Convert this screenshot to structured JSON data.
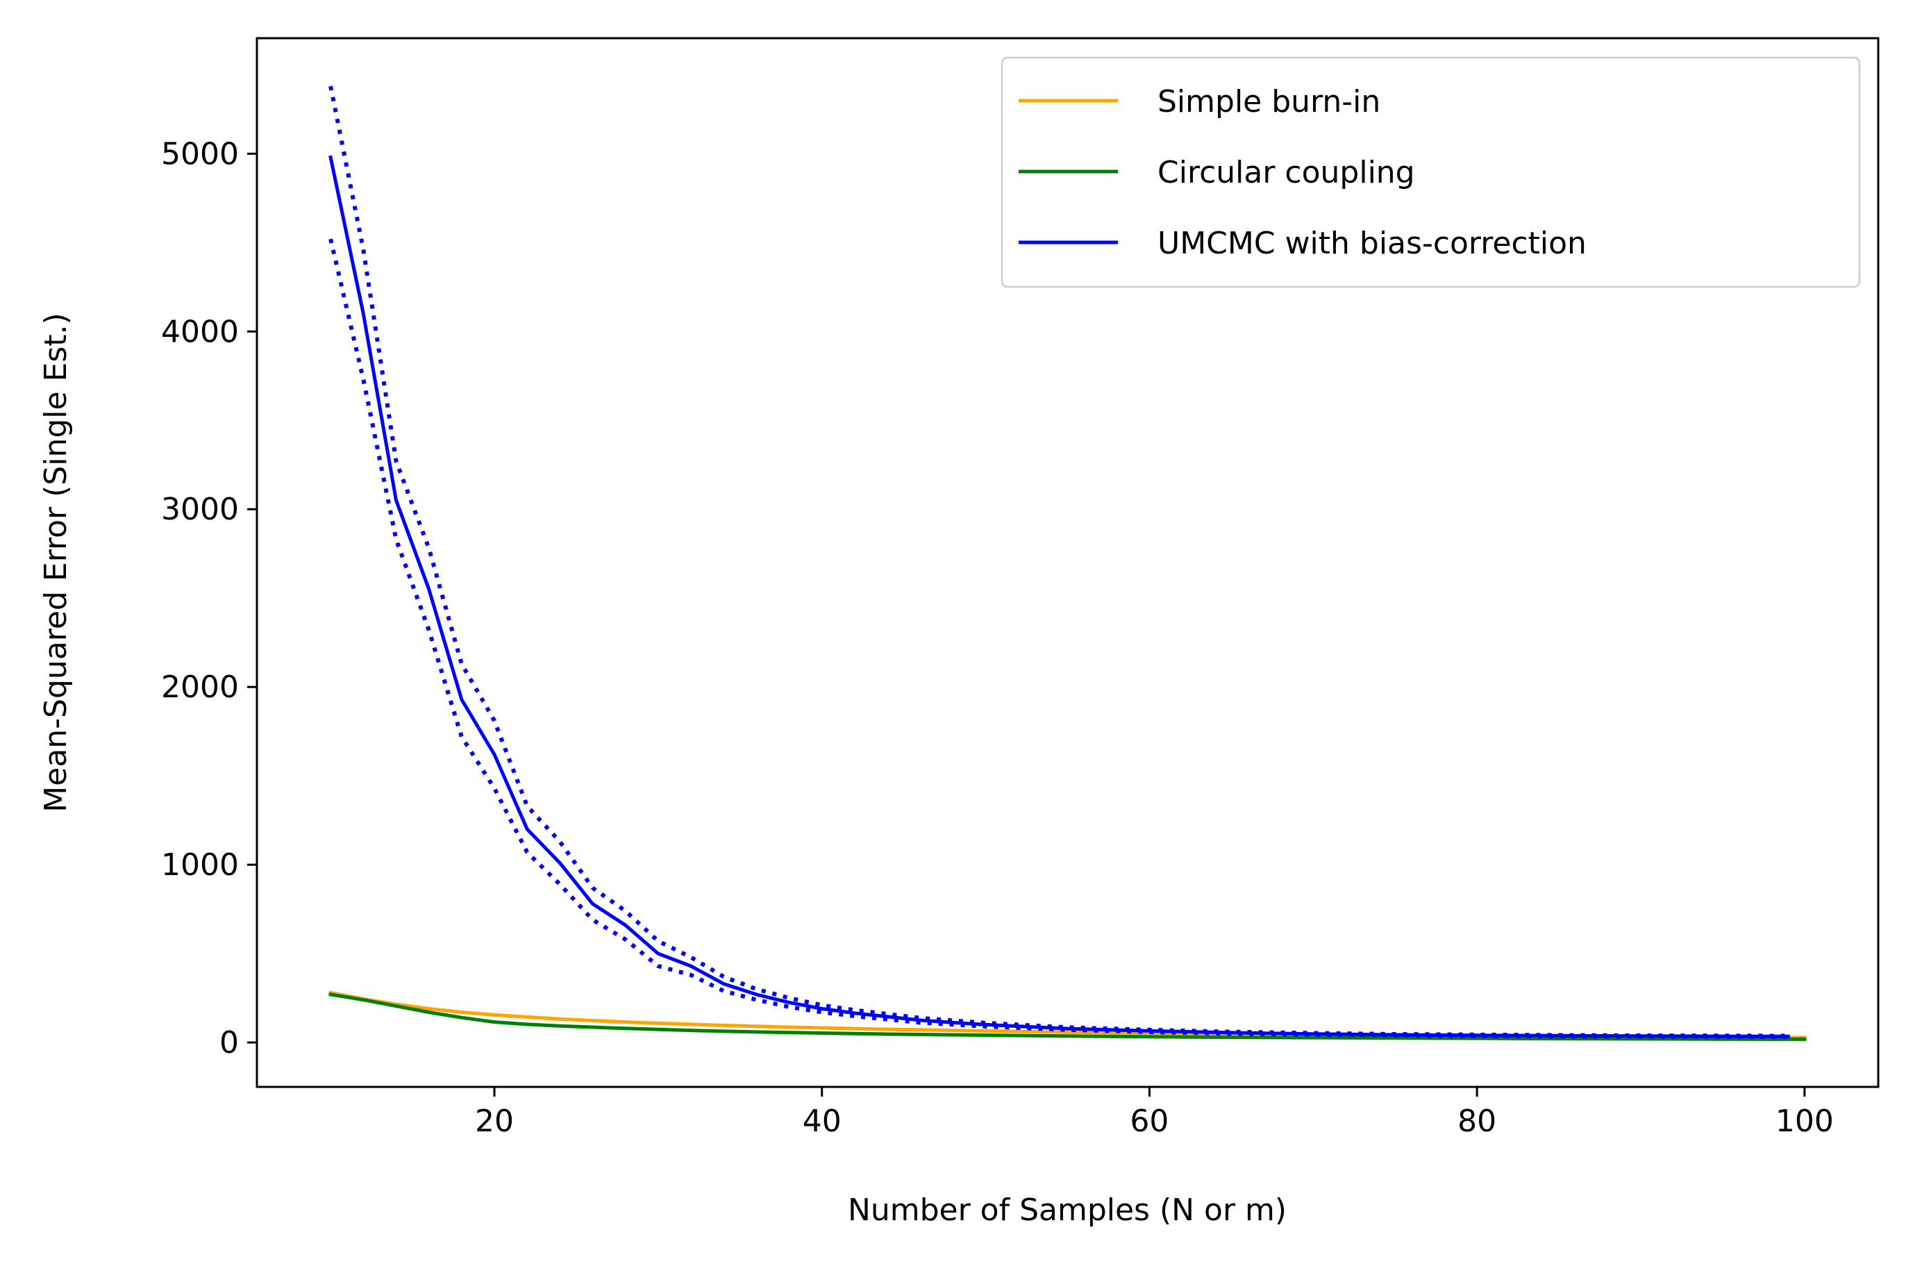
{
  "chart_data": {
    "type": "line",
    "title": "",
    "xlabel": "Number of Samples (N or m)",
    "ylabel": "Mean-Squared Error (Single Est.)",
    "xlim": [
      5.5,
      104.5
    ],
    "ylim": [
      -250,
      5650
    ],
    "xticks": [
      20,
      40,
      60,
      80,
      100
    ],
    "yticks": [
      0,
      1000,
      2000,
      3000,
      4000,
      5000
    ],
    "grid": false,
    "legend_position": "top-right",
    "x": [
      10,
      12,
      14,
      16,
      18,
      20,
      22,
      24,
      26,
      28,
      30,
      32,
      34,
      36,
      38,
      40,
      42,
      44,
      46,
      48,
      50,
      55,
      60,
      65,
      70,
      75,
      80,
      85,
      90,
      95,
      99,
      100
    ],
    "series": [
      {
        "name": "Simple burn-in",
        "color": "#FFA500",
        "style": "solid",
        "values": [
          280,
          245,
          215,
          190,
          170,
          155,
          143,
          132,
          123,
          115,
          108,
          102,
          96,
          91,
          86,
          82,
          78,
          74,
          71,
          68,
          65,
          58,
          52,
          47,
          43,
          40,
          37,
          34,
          32,
          30,
          28,
          28
        ]
      },
      {
        "name": "Circular coupling",
        "color": "#008000",
        "style": "solid",
        "values": [
          270,
          240,
          205,
          170,
          140,
          115,
          102,
          93,
          86,
          79,
          73,
          68,
          63,
          59,
          56,
          53,
          50,
          47,
          45,
          43,
          41,
          36,
          32,
          29,
          27,
          25,
          23,
          21,
          20,
          19,
          18,
          18
        ]
      },
      {
        "name": "UMCMC with bias-correction",
        "color": "#0000FF",
        "style": "solid",
        "values": [
          4980,
          4100,
          3050,
          2550,
          1930,
          1620,
          1200,
          1010,
          780,
          660,
          500,
          430,
          330,
          270,
          225,
          190,
          165,
          145,
          125,
          112,
          100,
          78,
          65,
          55,
          48,
          43,
          40,
          38,
          36,
          35,
          34,
          null
        ]
      },
      {
        "name": "",
        "color": "#0000FF",
        "style": "dotted",
        "values": [
          5380,
          4460,
          3270,
          2780,
          2130,
          1810,
          1330,
          1130,
          870,
          740,
          570,
          480,
          370,
          300,
          250,
          210,
          182,
          160,
          138,
          123,
          110,
          85,
          71,
          60,
          53,
          47,
          44,
          41,
          39,
          38,
          37,
          null
        ]
      },
      {
        "name": "",
        "color": "#0000FF",
        "style": "dotted",
        "values": [
          4520,
          3730,
          2830,
          2320,
          1720,
          1430,
          1070,
          890,
          690,
          580,
          430,
          380,
          290,
          240,
          200,
          170,
          148,
          130,
          112,
          101,
          90,
          71,
          59,
          50,
          44,
          39,
          36,
          35,
          33,
          32,
          31,
          null
        ]
      }
    ]
  }
}
